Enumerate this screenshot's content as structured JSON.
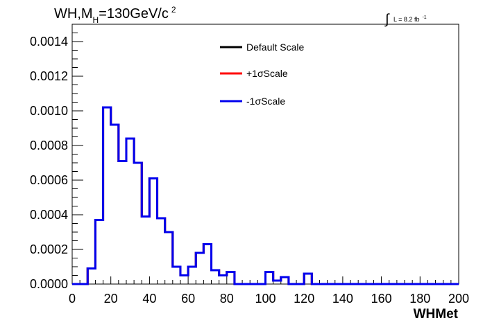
{
  "chart_data": {
    "type": "line",
    "title": {
      "main": "WH,M",
      "sub": "H",
      "rest": "=130GeV/c",
      "sup": "2"
    },
    "luminosity": {
      "integral": "∫",
      "text": "L = 8.2 fb",
      "sup": "-1"
    },
    "xlabel": "WHMet",
    "ylabel": "",
    "xlim": [
      0,
      200
    ],
    "ylim": [
      0,
      0.0015
    ],
    "x_ticks": [
      "0",
      "20",
      "40",
      "60",
      "80",
      "100",
      "120",
      "140",
      "160",
      "180",
      "200"
    ],
    "y_ticks": [
      "0.0000",
      "0.0002",
      "0.0004",
      "0.0006",
      "0.0008",
      "0.0010",
      "0.0012",
      "0.0014"
    ],
    "legend_position": "top-center",
    "bin_width": 4,
    "bin_edges_start": 0,
    "series": [
      {
        "name": "Default Scale",
        "color": "#000000",
        "values": [
          0,
          0,
          9e-05,
          0.00037,
          0.00102,
          0.00092,
          0.00071,
          0.00084,
          0.0007,
          0.00039,
          0.00061,
          0.00038,
          0.0003,
          0.0001,
          5e-05,
          0.0001,
          0.00018,
          0.00023,
          8e-05,
          5e-05,
          7e-05,
          0,
          0,
          0,
          0,
          7e-05,
          2e-05,
          4e-05,
          0,
          0,
          6e-05,
          0,
          0,
          0,
          0,
          0,
          0,
          0,
          0,
          0,
          0,
          0,
          0,
          0,
          0,
          0,
          0,
          0,
          0,
          0
        ]
      },
      {
        "name": "+1σScale",
        "color": "#ff0000",
        "values": [
          0,
          0,
          9e-05,
          0.00037,
          0.00102,
          0.00092,
          0.00071,
          0.00084,
          0.0007,
          0.00039,
          0.00061,
          0.00038,
          0.0003,
          0.0001,
          5e-05,
          0.0001,
          0.00018,
          0.00023,
          8e-05,
          5e-05,
          7e-05,
          0,
          0,
          0,
          0,
          7e-05,
          2e-05,
          4e-05,
          0,
          0,
          6e-05,
          0,
          0,
          0,
          0,
          0,
          0,
          0,
          0,
          0,
          0,
          0,
          0,
          0,
          0,
          0,
          0,
          0,
          0,
          0
        ]
      },
      {
        "name": "-1σScale",
        "color": "#0000ee",
        "values": [
          0,
          0,
          9e-05,
          0.00037,
          0.00102,
          0.00092,
          0.00071,
          0.00084,
          0.0007,
          0.00039,
          0.00061,
          0.00038,
          0.0003,
          0.0001,
          5e-05,
          0.0001,
          0.00018,
          0.00023,
          8e-05,
          5e-05,
          7e-05,
          0,
          0,
          0,
          0,
          7e-05,
          2e-05,
          4e-05,
          0,
          0,
          6e-05,
          0,
          0,
          0,
          0,
          0,
          0,
          0,
          0,
          0,
          0,
          0,
          0,
          0,
          0,
          0,
          0,
          0,
          0,
          0
        ]
      }
    ]
  }
}
